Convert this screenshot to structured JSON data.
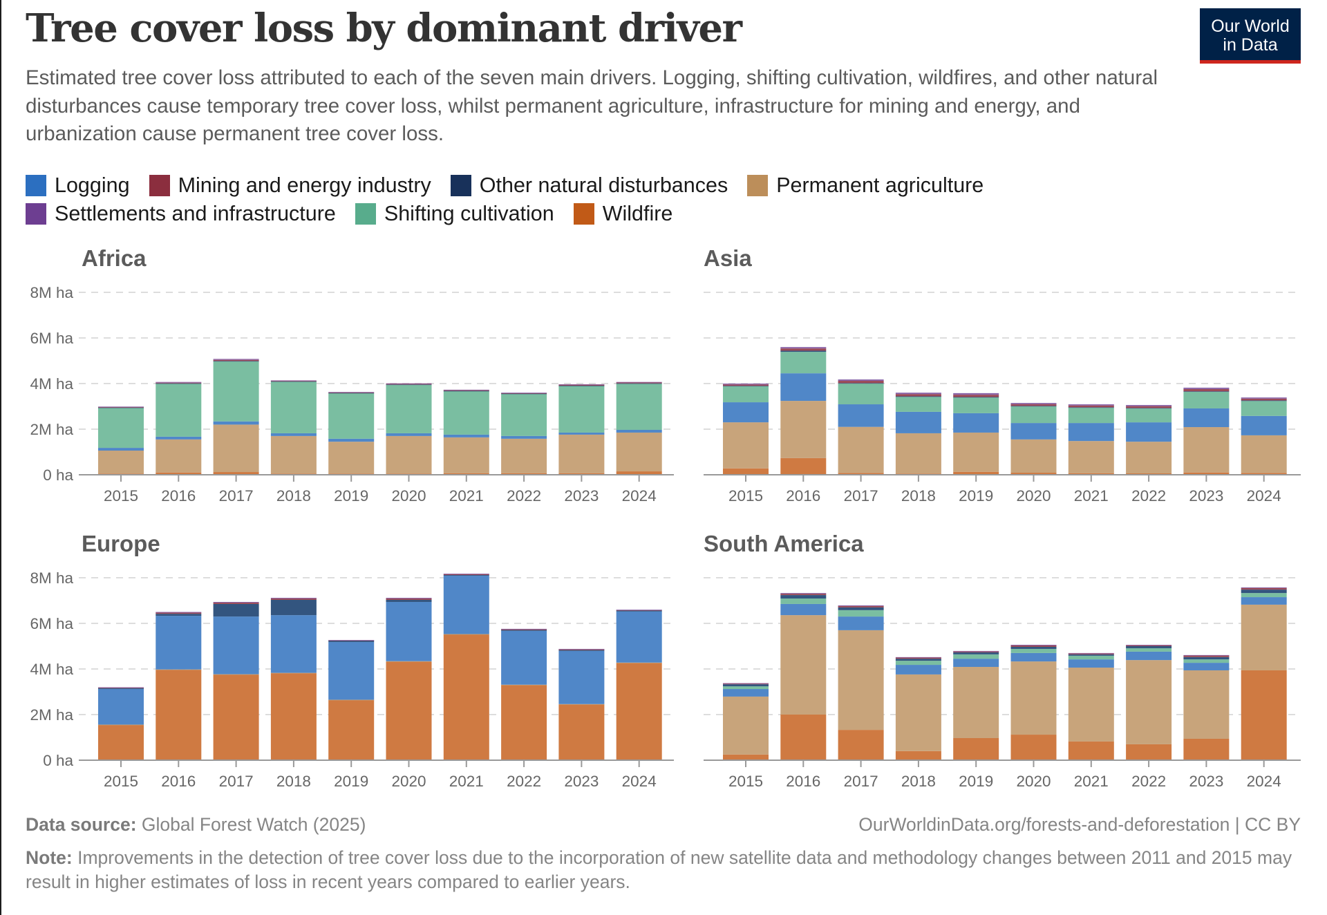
{
  "header": {
    "title": "Tree cover loss by dominant driver",
    "subtitle": "Estimated tree cover loss attributed to each of the seven main drivers. Logging, shifting cultivation, wildfires, and other natural disturbances cause temporary tree cover loss, whilst permanent agriculture, infrastructure for mining and energy, and urbanization cause permanent tree cover loss.",
    "logo_line1": "Our World",
    "logo_line2": "in Data"
  },
  "legend": {
    "row1": [
      {
        "key": "logging",
        "label": "Logging",
        "color": "#2C6FC0"
      },
      {
        "key": "mining",
        "label": "Mining and energy industry",
        "color": "#8B2E3E"
      },
      {
        "key": "other_natural",
        "label": "Other natural disturbances",
        "color": "#18315A"
      },
      {
        "key": "permanent_agriculture",
        "label": "Permanent agriculture",
        "color": "#BC8E5A"
      }
    ],
    "row2": [
      {
        "key": "settlements",
        "label": "Settlements and infrastructure",
        "color": "#6D3E91"
      },
      {
        "key": "shifting_cultivation",
        "label": "Shifting cultivation",
        "color": "#58AC8C"
      },
      {
        "key": "wildfire",
        "label": "Wildfire",
        "color": "#C15A17"
      }
    ]
  },
  "footer": {
    "source_label": "Data source:",
    "source_text": " Global Forest Watch (2025)",
    "url": "OurWorldinData.org/forests-and-deforestation | CC BY",
    "note_label": "Note:",
    "note_text": " Improvements in the detection of tree cover loss due to the incorporation of new satellite data and methodology changes between 2011 and 2015 may result in higher estimates of loss in recent years compared to earlier years."
  },
  "chart_data": [
    {
      "type": "bar",
      "stacked": true,
      "title": "Africa",
      "unit": "M ha",
      "categories": [
        "2015",
        "2016",
        "2017",
        "2018",
        "2019",
        "2020",
        "2021",
        "2022",
        "2023",
        "2024"
      ],
      "ylim": [
        0,
        8
      ],
      "yticks": [
        "0 ha",
        "2M ha",
        "4M ha",
        "6M ha",
        "8M ha"
      ],
      "grid": true,
      "series": [
        {
          "name": "Wildfire",
          "values": [
            0.05,
            0.1,
            0.12,
            0.05,
            0.05,
            0.05,
            0.07,
            0.07,
            0.07,
            0.15
          ]
        },
        {
          "name": "Permanent agriculture",
          "values": [
            1.01,
            1.45,
            2.08,
            1.65,
            1.4,
            1.65,
            1.57,
            1.51,
            1.69,
            1.7
          ]
        },
        {
          "name": "Logging",
          "values": [
            0.12,
            0.12,
            0.14,
            0.12,
            0.13,
            0.12,
            0.12,
            0.12,
            0.09,
            0.12
          ]
        },
        {
          "name": "Shifting cultivation",
          "values": [
            1.76,
            2.33,
            2.64,
            2.27,
            2.0,
            2.13,
            1.91,
            1.85,
            2.05,
            2.03
          ]
        },
        {
          "name": "Other natural disturbances",
          "values": [
            0.01,
            0.01,
            0.01,
            0.01,
            0.01,
            0.01,
            0.01,
            0.01,
            0.01,
            0.01
          ]
        },
        {
          "name": "Mining and energy industry",
          "values": [
            0.02,
            0.03,
            0.05,
            0.02,
            0.02,
            0.03,
            0.03,
            0.02,
            0.04,
            0.04
          ]
        },
        {
          "name": "Settlements and infrastructure",
          "values": [
            0.02,
            0.03,
            0.04,
            0.02,
            0.02,
            0.02,
            0.02,
            0.02,
            0.02,
            0.02
          ]
        }
      ]
    },
    {
      "type": "bar",
      "stacked": true,
      "title": "Asia",
      "unit": "M ha",
      "categories": [
        "2015",
        "2016",
        "2017",
        "2018",
        "2019",
        "2020",
        "2021",
        "2022",
        "2023",
        "2024"
      ],
      "ylim": [
        0,
        8
      ],
      "yticks": [],
      "grid": true,
      "series": [
        {
          "name": "Wildfire",
          "values": [
            0.28,
            0.73,
            0.08,
            0.05,
            0.13,
            0.09,
            0.07,
            0.06,
            0.1,
            0.08
          ]
        },
        {
          "name": "Permanent agriculture",
          "values": [
            2.02,
            2.51,
            2.02,
            1.77,
            1.72,
            1.46,
            1.41,
            1.39,
            1.99,
            1.65
          ]
        },
        {
          "name": "Logging",
          "values": [
            0.88,
            1.21,
            0.99,
            0.94,
            0.85,
            0.72,
            0.79,
            0.85,
            0.82,
            0.85
          ]
        },
        {
          "name": "Shifting cultivation",
          "values": [
            0.7,
            0.94,
            0.91,
            0.66,
            0.69,
            0.73,
            0.67,
            0.61,
            0.73,
            0.66
          ]
        },
        {
          "name": "Other natural disturbances",
          "values": [
            0.02,
            0.05,
            0.02,
            0.02,
            0.02,
            0.02,
            0.02,
            0.02,
            0.02,
            0.02
          ]
        },
        {
          "name": "Mining and energy industry",
          "values": [
            0.06,
            0.1,
            0.1,
            0.1,
            0.1,
            0.08,
            0.08,
            0.08,
            0.1,
            0.08
          ]
        },
        {
          "name": "Settlements and infrastructure",
          "values": [
            0.04,
            0.06,
            0.06,
            0.06,
            0.07,
            0.05,
            0.05,
            0.05,
            0.06,
            0.05
          ]
        }
      ]
    },
    {
      "type": "bar",
      "stacked": true,
      "title": "Europe",
      "unit": "M ha",
      "categories": [
        "2015",
        "2016",
        "2017",
        "2018",
        "2019",
        "2020",
        "2021",
        "2022",
        "2023",
        "2024"
      ],
      "ylim": [
        0,
        8
      ],
      "yticks": [
        "0 ha",
        "2M ha",
        "4M ha",
        "6M ha",
        "8M ha"
      ],
      "grid": true,
      "series": [
        {
          "name": "Wildfire",
          "values": [
            1.55,
            3.97,
            3.76,
            3.82,
            2.64,
            4.33,
            5.52,
            3.3,
            2.45,
            4.27
          ]
        },
        {
          "name": "Permanent agriculture",
          "values": [
            0.01,
            0.01,
            0.01,
            0.01,
            0.01,
            0.01,
            0.01,
            0.01,
            0.01,
            0.01
          ]
        },
        {
          "name": "Logging",
          "values": [
            1.56,
            2.35,
            2.53,
            2.53,
            2.53,
            2.6,
            2.56,
            2.36,
            2.33,
            2.24
          ]
        },
        {
          "name": "Shifting cultivation",
          "values": [
            0.0,
            0.0,
            0.0,
            0.0,
            0.0,
            0.0,
            0.0,
            0.0,
            0.0,
            0.0
          ]
        },
        {
          "name": "Other natural disturbances",
          "values": [
            0.04,
            0.09,
            0.55,
            0.67,
            0.06,
            0.09,
            0.03,
            0.04,
            0.04,
            0.04
          ]
        },
        {
          "name": "Mining and energy industry",
          "values": [
            0.03,
            0.05,
            0.06,
            0.06,
            0.02,
            0.06,
            0.04,
            0.04,
            0.04,
            0.03
          ]
        },
        {
          "name": "Settlements and infrastructure",
          "values": [
            0.01,
            0.03,
            0.03,
            0.03,
            0.01,
            0.03,
            0.02,
            0.01,
            0.01,
            0.01
          ]
        }
      ]
    },
    {
      "type": "bar",
      "stacked": true,
      "title": "South America",
      "unit": "M ha",
      "categories": [
        "2015",
        "2016",
        "2017",
        "2018",
        "2019",
        "2020",
        "2021",
        "2022",
        "2023",
        "2024"
      ],
      "ylim": [
        0,
        8
      ],
      "yticks": [],
      "grid": true,
      "series": [
        {
          "name": "Wildfire",
          "values": [
            0.25,
            2.0,
            1.33,
            0.4,
            0.97,
            1.12,
            0.82,
            0.7,
            0.94,
            3.94
          ]
        },
        {
          "name": "Permanent agriculture",
          "values": [
            2.54,
            4.36,
            4.37,
            3.36,
            3.12,
            3.21,
            3.24,
            3.69,
            3.0,
            2.88
          ]
        },
        {
          "name": "Logging",
          "values": [
            0.33,
            0.49,
            0.6,
            0.42,
            0.36,
            0.37,
            0.36,
            0.37,
            0.33,
            0.33
          ]
        },
        {
          "name": "Shifting cultivation",
          "values": [
            0.12,
            0.24,
            0.28,
            0.18,
            0.19,
            0.18,
            0.16,
            0.15,
            0.15,
            0.18
          ]
        },
        {
          "name": "Other natural disturbances",
          "values": [
            0.09,
            0.15,
            0.12,
            0.09,
            0.09,
            0.09,
            0.06,
            0.09,
            0.1,
            0.15
          ]
        },
        {
          "name": "Mining and energy industry",
          "values": [
            0.03,
            0.06,
            0.06,
            0.05,
            0.04,
            0.06,
            0.04,
            0.04,
            0.07,
            0.07
          ]
        },
        {
          "name": "Settlements and infrastructure",
          "values": [
            0.02,
            0.03,
            0.03,
            0.02,
            0.02,
            0.03,
            0.02,
            0.02,
            0.02,
            0.03
          ]
        }
      ]
    }
  ],
  "bar_colors": {
    "Wildfire": "#CF7A42",
    "Permanent agriculture": "#C8A47B",
    "Logging": "#5087C8",
    "Shifting cultivation": "#7ABEA1",
    "Other natural disturbances": "#33557F",
    "Mining and energy industry": "#9B4A57",
    "Settlements and infrastructure": "#8A64A8"
  }
}
